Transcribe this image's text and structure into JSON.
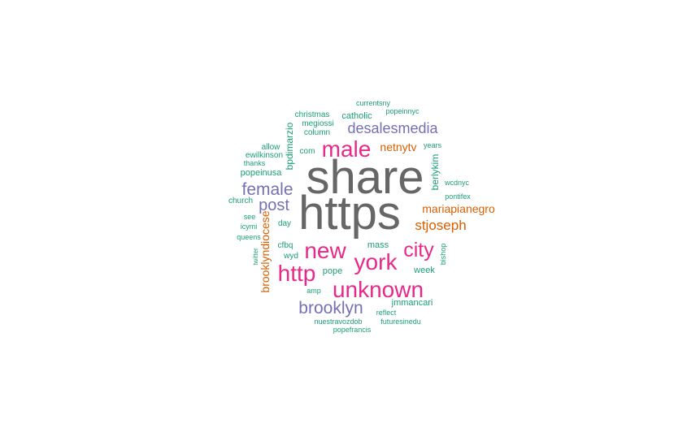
{
  "chart_data": {
    "type": "wordcloud",
    "palette": {
      "gray": "#666666",
      "magenta": "#e7298a",
      "purple": "#7570b3",
      "orange": "#d95f02",
      "teal": "#1b9e77"
    },
    "words": [
      {
        "text": "share",
        "tier": "gray"
      },
      {
        "text": "https",
        "tier": "gray"
      },
      {
        "text": "male",
        "tier": "magenta"
      },
      {
        "text": "new",
        "tier": "magenta"
      },
      {
        "text": "york",
        "tier": "magenta"
      },
      {
        "text": "city",
        "tier": "magenta"
      },
      {
        "text": "http",
        "tier": "magenta"
      },
      {
        "text": "unknown",
        "tier": "magenta"
      },
      {
        "text": "female",
        "tier": "purple"
      },
      {
        "text": "desalesmedia",
        "tier": "purple"
      },
      {
        "text": "post",
        "tier": "purple"
      },
      {
        "text": "brooklyn",
        "tier": "purple"
      },
      {
        "text": "stjoseph",
        "tier": "orange"
      },
      {
        "text": "mariapianegro",
        "tier": "orange"
      },
      {
        "text": "netnytv",
        "tier": "orange"
      },
      {
        "text": "brooklyndiocese",
        "tier": "orange"
      },
      {
        "text": "bpdimarzio",
        "tier": "teal"
      },
      {
        "text": "berlykim",
        "tier": "teal"
      },
      {
        "text": "catholic",
        "tier": "teal"
      },
      {
        "text": "popeinusa",
        "tier": "teal"
      },
      {
        "text": "jmmancari",
        "tier": "teal"
      },
      {
        "text": "week",
        "tier": "teal"
      },
      {
        "text": "mass",
        "tier": "teal"
      },
      {
        "text": "pope",
        "tier": "teal"
      },
      {
        "text": "christmas",
        "tier": "teal"
      },
      {
        "text": "megiossi",
        "tier": "teal"
      },
      {
        "text": "column",
        "tier": "teal"
      },
      {
        "text": "currentsny",
        "tier": "teal"
      },
      {
        "text": "popeinnyc",
        "tier": "teal"
      },
      {
        "text": "allow",
        "tier": "teal"
      },
      {
        "text": "com",
        "tier": "teal"
      },
      {
        "text": "years",
        "tier": "teal"
      },
      {
        "text": "ewilkinson",
        "tier": "teal"
      },
      {
        "text": "thanks",
        "tier": "teal"
      },
      {
        "text": "wcdnyc",
        "tier": "teal"
      },
      {
        "text": "pontifex",
        "tier": "teal"
      },
      {
        "text": "church",
        "tier": "teal"
      },
      {
        "text": "see",
        "tier": "teal"
      },
      {
        "text": "day",
        "tier": "teal"
      },
      {
        "text": "icymi",
        "tier": "teal"
      },
      {
        "text": "queens",
        "tier": "teal"
      },
      {
        "text": "cfbq",
        "tier": "teal"
      },
      {
        "text": "wyd",
        "tier": "teal"
      },
      {
        "text": "twitter",
        "tier": "teal"
      },
      {
        "text": "bishop",
        "tier": "teal"
      },
      {
        "text": "amp",
        "tier": "teal"
      },
      {
        "text": "reflect",
        "tier": "teal"
      },
      {
        "text": "nuestravozdob",
        "tier": "teal"
      },
      {
        "text": "futuresinedu",
        "tier": "teal"
      },
      {
        "text": "popefrancis",
        "tier": "teal"
      }
    ]
  }
}
